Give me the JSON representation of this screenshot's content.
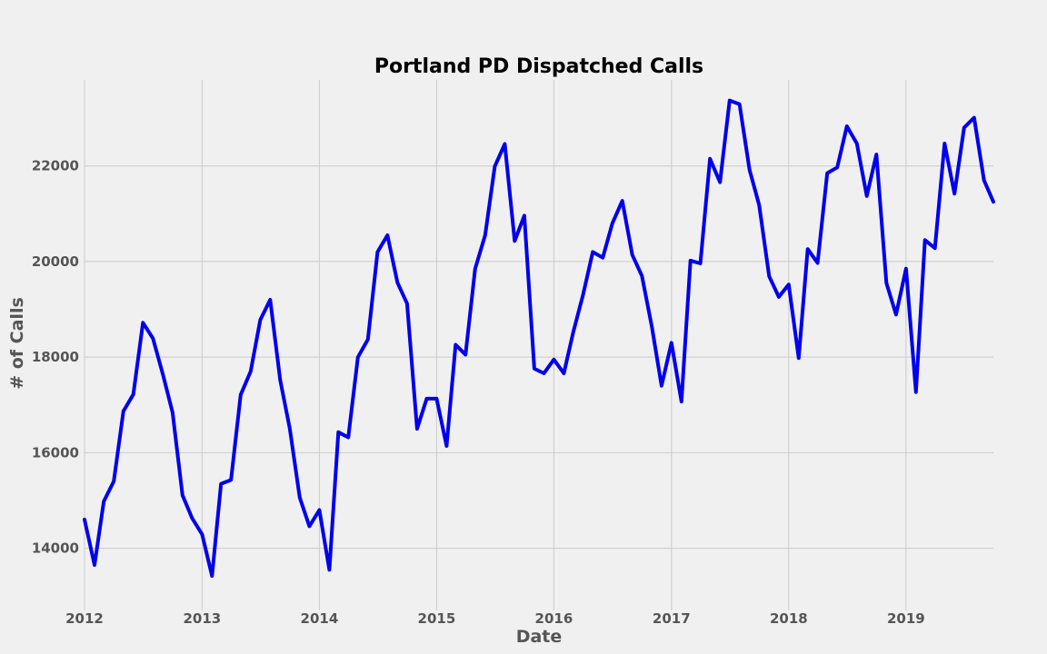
{
  "chart_data": {
    "type": "line",
    "title": "Portland PD Dispatched Calls",
    "xlabel": "Date",
    "ylabel": "# of Calls",
    "xlim": [
      "2012-01-01",
      "2019-09-30"
    ],
    "ylim": [
      12700,
      23800
    ],
    "x_ticks": [
      "2012",
      "2013",
      "2014",
      "2015",
      "2016",
      "2017",
      "2018",
      "2019"
    ],
    "y_ticks": [
      14000,
      16000,
      18000,
      20000,
      22000
    ],
    "grid": true,
    "legend": "none",
    "line_color": "#0000ee",
    "background": "#f0f0f0",
    "series": [
      {
        "x": [
          "2012-01",
          "2012-02",
          "2012-03",
          "2012-04",
          "2012-05",
          "2012-06",
          "2012-07",
          "2012-08",
          "2012-09",
          "2012-10",
          "2012-11",
          "2012-12",
          "2013-01",
          "2013-02",
          "2013-03",
          "2013-04",
          "2013-05",
          "2013-06",
          "2013-07",
          "2013-08",
          "2013-09",
          "2013-10",
          "2013-11",
          "2013-12",
          "2014-01",
          "2014-02",
          "2014-03",
          "2014-04",
          "2014-05",
          "2014-06",
          "2014-07",
          "2014-08",
          "2014-09",
          "2014-10",
          "2014-11",
          "2014-12",
          "2015-01",
          "2015-02",
          "2015-03",
          "2015-04",
          "2015-05",
          "2015-06",
          "2015-07",
          "2015-08",
          "2015-09",
          "2015-10",
          "2015-11",
          "2015-12",
          "2016-01",
          "2016-02",
          "2016-03",
          "2016-04",
          "2016-05",
          "2016-06",
          "2016-07",
          "2016-08",
          "2016-09",
          "2016-10",
          "2016-11",
          "2016-12",
          "2017-01",
          "2017-02",
          "2017-03",
          "2017-04",
          "2017-05",
          "2017-06",
          "2017-07",
          "2017-08",
          "2017-09",
          "2017-10",
          "2017-11",
          "2017-12",
          "2018-01",
          "2018-02",
          "2018-03",
          "2018-04",
          "2018-05",
          "2018-06",
          "2018-07",
          "2018-08",
          "2018-09",
          "2018-10",
          "2018-11",
          "2018-12",
          "2019-01",
          "2019-02",
          "2019-03",
          "2019-04",
          "2019-05",
          "2019-06",
          "2019-07",
          "2019-08",
          "2019-09",
          "2019-10"
        ],
        "values": [
          14600,
          13650,
          14980,
          15400,
          16870,
          17220,
          18720,
          18390,
          17640,
          16840,
          15110,
          14630,
          14290,
          13420,
          15350,
          15430,
          17210,
          17700,
          18780,
          19200,
          17520,
          16500,
          15060,
          14460,
          14800,
          13550,
          16430,
          16320,
          18000,
          18370,
          20200,
          20550,
          19560,
          19120,
          16500,
          17130,
          17130,
          16140,
          18260,
          18050,
          19850,
          20550,
          21990,
          22460,
          20430,
          20960,
          17760,
          17660,
          17950,
          17660,
          18510,
          19310,
          20200,
          20080,
          20800,
          21270,
          20140,
          19700,
          18640,
          17400,
          18300,
          17070,
          20020,
          19960,
          22150,
          21660,
          23370,
          23290,
          21920,
          21180,
          19690,
          19260,
          19520,
          17980,
          20260,
          19970,
          21850,
          21970,
          22830,
          22470,
          21370,
          22240,
          19550,
          18890,
          19850,
          17270,
          20450,
          20280,
          22470,
          21420,
          22800,
          23010,
          21700,
          21250
        ]
      }
    ]
  }
}
